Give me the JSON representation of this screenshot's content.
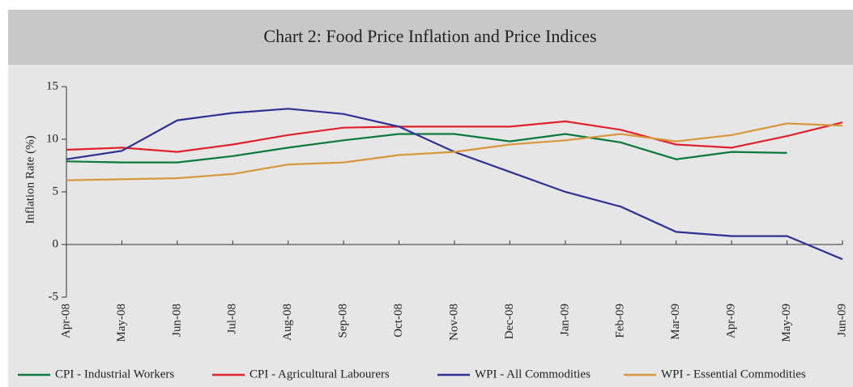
{
  "chart_data": {
    "type": "line",
    "title": "Chart 2: Food Price Inflation and Price Indices",
    "y_label": "Inflation Rate (%)",
    "categories": [
      "Apr-08",
      "May-08",
      "Jun-08",
      "Jul-08",
      "Aug-08",
      "Sep-08",
      "Oct-08",
      "Nov-08",
      "Dec-08",
      "Jan-09",
      "Feb-09",
      "Mar-09",
      "Apr-09",
      "May-09",
      "Jun-09"
    ],
    "ylim": [
      -5,
      15
    ],
    "yticks": [
      -5,
      0,
      5,
      10,
      15
    ],
    "series": [
      {
        "name": "CPI - Industrial Workers",
        "color": "#0a7a3a",
        "values": [
          7.9,
          7.8,
          7.8,
          8.4,
          9.2,
          9.9,
          10.5,
          10.5,
          9.8,
          10.5,
          9.7,
          8.1,
          8.8,
          8.7,
          null
        ]
      },
      {
        "name": "CPI - Agricultural Labourers",
        "color": "#e0202a",
        "values": [
          9.0,
          9.2,
          8.8,
          9.5,
          10.4,
          11.1,
          11.2,
          11.2,
          11.2,
          11.7,
          10.9,
          9.5,
          9.2,
          10.3,
          11.6
        ]
      },
      {
        "name": "WPI - All Commodities",
        "color": "#2e3192",
        "values": [
          8.1,
          8.9,
          11.8,
          12.5,
          12.9,
          12.4,
          11.2,
          8.8,
          6.9,
          5.0,
          3.6,
          1.2,
          0.8,
          0.8,
          -1.4
        ]
      },
      {
        "name": "WPI - Essential Commodities",
        "color": "#d8973c",
        "values": [
          6.1,
          6.2,
          6.3,
          6.7,
          7.6,
          7.8,
          8.5,
          8.8,
          9.5,
          9.9,
          10.5,
          9.8,
          10.4,
          11.5,
          11.3
        ]
      }
    ]
  }
}
